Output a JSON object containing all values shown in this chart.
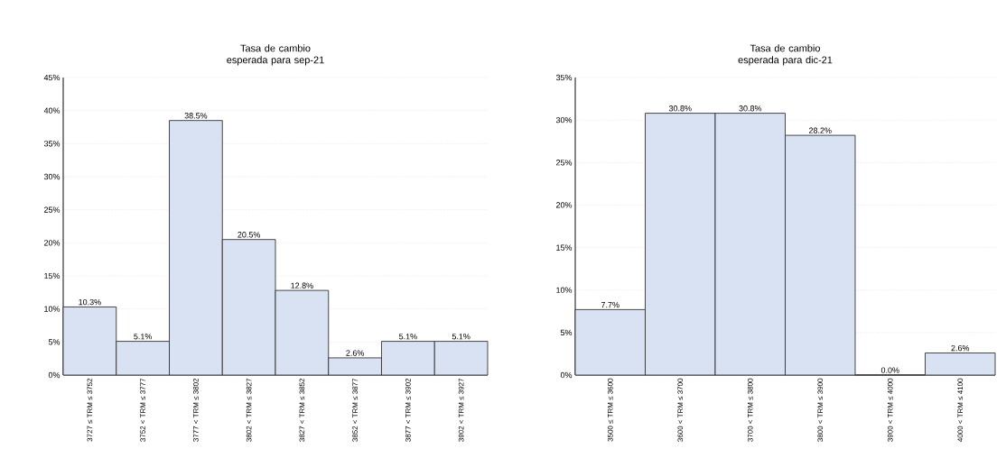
{
  "chart_data": [
    {
      "type": "bar",
      "title": "Tasa de cambio esperada para sep-21",
      "categories": [
        "3727 ≤ TRM ≤ 3752",
        "3752 < TRM ≤ 3777",
        "3777 < TRM ≤ 3802",
        "3802 < TRM ≤ 3827",
        "3827 < TRM ≤ 3852",
        "3852 < TRM ≤ 3877",
        "3877 < TRM ≤ 3902",
        "3902 < TRM ≤ 3927"
      ],
      "values": [
        10.3,
        5.1,
        38.5,
        20.5,
        12.8,
        2.6,
        5.1,
        5.1
      ],
      "value_labels": [
        "10.3%",
        "5.1%",
        "38.5%",
        "20.5%",
        "12.8%",
        "2.6%",
        "5.1%",
        "5.1%"
      ],
      "color": "#d9e2f3",
      "ylim": [
        0,
        45
      ],
      "yticks": [
        {
          "value": 0,
          "label": "0%"
        },
        {
          "value": 5,
          "label": "5%"
        },
        {
          "value": 10,
          "label": "10%"
        },
        {
          "value": 15,
          "label": "15%"
        },
        {
          "value": 20,
          "label": "20%"
        },
        {
          "value": 25,
          "label": "25%"
        },
        {
          "value": 30,
          "label": "30%"
        },
        {
          "value": 35,
          "label": "35%"
        },
        {
          "value": 40,
          "label": "40%"
        },
        {
          "value": 45,
          "label": "45%"
        }
      ],
      "grid": "y"
    },
    {
      "type": "bar",
      "title": "Tasa de cambio esperada para dic-21",
      "categories": [
        "3500 ≤ TRM ≤ 3600",
        "3600 < TRM ≤ 3700",
        "3700 < TRM ≤ 3800",
        "3800 < TRM ≤ 3900",
        "3900 < TRM ≤ 4000",
        "4000 < TRM ≤ 4100"
      ],
      "values": [
        7.7,
        30.8,
        30.8,
        28.2,
        0.0,
        2.6
      ],
      "value_labels": [
        "7.7%",
        "30.8%",
        "30.8%",
        "28.2%",
        "0.0%",
        "2.6%"
      ],
      "color": "#d9e2f3",
      "ylim": [
        0,
        35
      ],
      "yticks": [
        {
          "value": 0,
          "label": "0%"
        },
        {
          "value": 5,
          "label": "5%"
        },
        {
          "value": 10,
          "label": "10%"
        },
        {
          "value": 15,
          "label": "15%"
        },
        {
          "value": 20,
          "label": "20%"
        },
        {
          "value": 25,
          "label": "25%"
        },
        {
          "value": 30,
          "label": "30%"
        },
        {
          "value": 35,
          "label": "35%"
        }
      ],
      "grid": "y"
    }
  ]
}
